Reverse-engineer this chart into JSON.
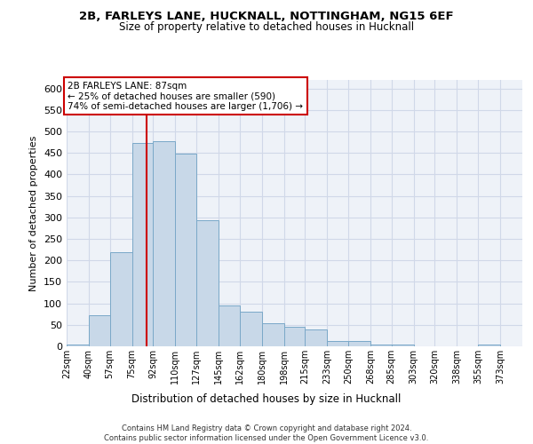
{
  "title_line1": "2B, FARLEYS LANE, HUCKNALL, NOTTINGHAM, NG15 6EF",
  "title_line2": "Size of property relative to detached houses in Hucknall",
  "xlabel": "Distribution of detached houses by size in Hucknall",
  "ylabel": "Number of detached properties",
  "footer": "Contains HM Land Registry data © Crown copyright and database right 2024.\nContains public sector information licensed under the Open Government Licence v3.0.",
  "bin_labels": [
    "22sqm",
    "40sqm",
    "57sqm",
    "75sqm",
    "92sqm",
    "110sqm",
    "127sqm",
    "145sqm",
    "162sqm",
    "180sqm",
    "198sqm",
    "215sqm",
    "233sqm",
    "250sqm",
    "268sqm",
    "285sqm",
    "303sqm",
    "320sqm",
    "338sqm",
    "355sqm",
    "373sqm"
  ],
  "bar_values": [
    5,
    72,
    219,
    474,
    478,
    449,
    294,
    95,
    80,
    53,
    46,
    40,
    13,
    12,
    5,
    5,
    0,
    0,
    0,
    5
  ],
  "bar_color": "#c8d8e8",
  "bar_edgecolor": "#7aa8c8",
  "vline_x": 87,
  "vline_color": "#cc0000",
  "annotation_text": "2B FARLEYS LANE: 87sqm\n← 25% of detached houses are smaller (590)\n74% of semi-detached houses are larger (1,706) →",
  "annotation_box_color": "#cc0000",
  "ylim": [
    0,
    620
  ],
  "yticks": [
    0,
    50,
    100,
    150,
    200,
    250,
    300,
    350,
    400,
    450,
    500,
    550,
    600
  ],
  "grid_color": "#d0d8e8",
  "plot_bg_color": "#eef2f8",
  "footer_color": "#333333"
}
